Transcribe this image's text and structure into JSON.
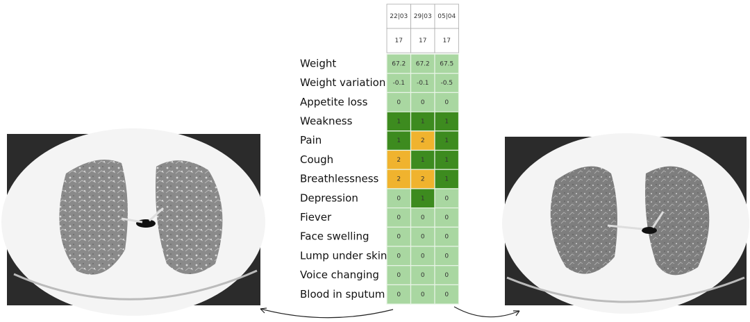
{
  "table": {
    "dates": [
      "22|03",
      "29|03",
      "05|04"
    ],
    "scores": [
      "17",
      "17",
      "17"
    ],
    "rows": [
      {
        "label": "Weight",
        "values": [
          "67.2",
          "67.2",
          "67.5"
        ]
      },
      {
        "label": "Weight variation",
        "values": [
          "-0.1",
          "-0.1",
          "-0.5"
        ]
      },
      {
        "label": "Appetite loss",
        "values": [
          "0",
          "0",
          "0"
        ]
      },
      {
        "label": "Weakness",
        "values": [
          "1",
          "1",
          "1"
        ]
      },
      {
        "label": "Pain",
        "values": [
          "1",
          "2",
          "1"
        ]
      },
      {
        "label": "Cough",
        "values": [
          "2",
          "1",
          "1"
        ]
      },
      {
        "label": "Breathlessness",
        "values": [
          "2",
          "2",
          "1"
        ]
      },
      {
        "label": "Depression",
        "values": [
          "0",
          "1",
          "0"
        ]
      },
      {
        "label": "Fiever",
        "values": [
          "0",
          "0",
          "0"
        ]
      },
      {
        "label": "Face swelling",
        "values": [
          "0",
          "0",
          "0"
        ]
      },
      {
        "label": "Lump under skin",
        "values": [
          "0",
          "0",
          "0"
        ]
      },
      {
        "label": "Voice changing",
        "values": [
          "0",
          "0",
          "0"
        ]
      },
      {
        "label": "Blood in sputum",
        "values": [
          "0",
          "0",
          "0"
        ]
      }
    ]
  }
}
